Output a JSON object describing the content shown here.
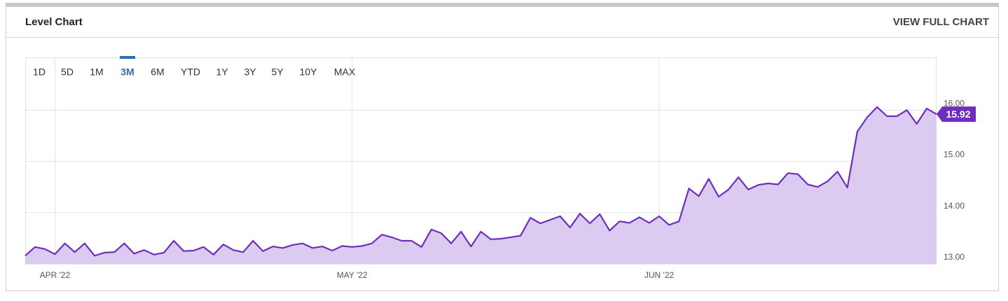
{
  "header": {
    "title": "Level Chart",
    "link": "VIEW FULL CHART"
  },
  "range_selector": {
    "options": [
      "1D",
      "5D",
      "1M",
      "3M",
      "6M",
      "YTD",
      "1Y",
      "3Y",
      "5Y",
      "10Y",
      "MAX"
    ],
    "selected": 3
  },
  "chart_data": {
    "type": "area",
    "color": "#6f2dbd",
    "fill": "#dccbf0",
    "grid": true,
    "categories": [
      null,
      null,
      null,
      "APR '22",
      null,
      null,
      null,
      null,
      null,
      null,
      null,
      null,
      null,
      null,
      null,
      null,
      null,
      null,
      null,
      null,
      null,
      null,
      null,
      null,
      null,
      null,
      null,
      null,
      null,
      null,
      null,
      null,
      null,
      "MAY '22",
      null,
      null,
      null,
      null,
      null,
      null,
      null,
      null,
      null,
      null,
      null,
      null,
      null,
      null,
      null,
      null,
      null,
      null,
      null,
      null,
      null,
      null,
      null,
      null,
      null,
      null,
      null,
      null,
      null,
      null,
      "JUN '22",
      null,
      null,
      null,
      null,
      null,
      null,
      null,
      null,
      null,
      null,
      null,
      null,
      null,
      null,
      null,
      null,
      null,
      null,
      null,
      null,
      null,
      null,
      null,
      null,
      null,
      null,
      null,
      null
    ],
    "values": [
      13.16,
      13.33,
      13.29,
      13.19,
      13.4,
      13.23,
      13.4,
      13.16,
      13.22,
      13.23,
      13.4,
      13.2,
      13.27,
      13.18,
      13.22,
      13.45,
      13.25,
      13.26,
      13.33,
      13.18,
      13.38,
      13.27,
      13.23,
      13.45,
      13.25,
      13.34,
      13.31,
      13.37,
      13.4,
      13.31,
      13.34,
      13.26,
      13.35,
      13.33,
      13.35,
      13.4,
      13.57,
      13.52,
      13.45,
      13.45,
      13.33,
      13.67,
      13.6,
      13.4,
      13.63,
      13.34,
      13.63,
      13.48,
      13.49,
      13.52,
      13.55,
      13.9,
      13.79,
      13.86,
      13.93,
      13.71,
      13.98,
      13.79,
      13.97,
      13.65,
      13.83,
      13.8,
      13.91,
      13.8,
      13.93,
      13.76,
      13.83,
      14.47,
      14.32,
      14.66,
      14.31,
      14.45,
      14.69,
      14.45,
      14.54,
      14.57,
      14.55,
      14.77,
      14.75,
      14.55,
      14.5,
      14.61,
      14.8,
      14.49,
      15.58,
      15.86,
      16.06,
      15.88,
      15.88,
      16.0,
      15.73,
      16.03,
      15.92
    ],
    "ylim": [
      13,
      17
    ],
    "yticks": [
      {
        "value": 13,
        "label": "13.00"
      },
      {
        "value": 14,
        "label": "14.00"
      },
      {
        "value": 15,
        "label": "15.00"
      },
      {
        "value": 16,
        "label": "16.00"
      }
    ]
  }
}
